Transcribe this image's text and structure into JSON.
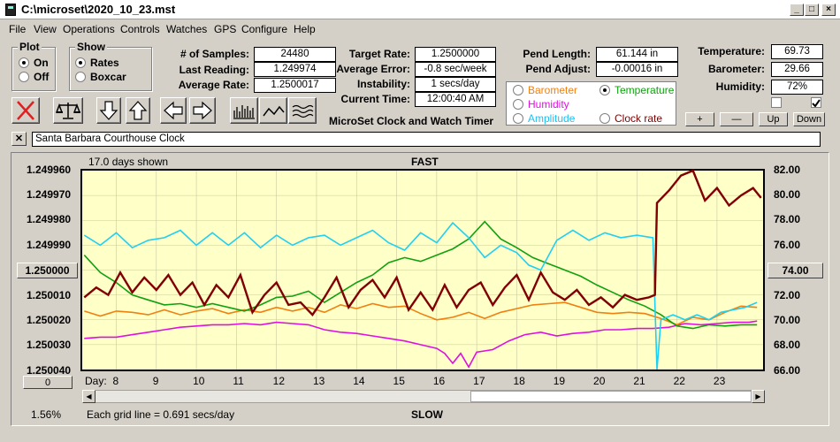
{
  "window": {
    "title": "C:\\microset\\2020_10_23.mst"
  },
  "menu": [
    "File",
    "View",
    "Operations",
    "Controls",
    "Watches",
    "GPS",
    "Configure",
    "Help"
  ],
  "plot_group": {
    "legend": "Plot",
    "on": "On",
    "off": "Off"
  },
  "show_group": {
    "legend": "Show",
    "rates": "Rates",
    "boxcar": "Boxcar"
  },
  "stats": {
    "samples_label": "# of Samples:",
    "samples": "24480",
    "last_label": "Last Reading:",
    "last": "1.249974",
    "avg_label": "Average Rate:",
    "avg": "1.2500017",
    "target_label": "Target Rate:",
    "target": "1.2500000",
    "avgerr_label": "Average Error:",
    "avgerr": "-0.8 sec/week",
    "instab_label": "Instability:",
    "instab": "1 secs/day",
    "curtime_label": "Current Time:",
    "curtime": "12:00:40 AM",
    "pendlen_label": "Pend Length:",
    "pendlen": "61.144 in",
    "pendadj_label": "Pend Adjust:",
    "pendadj": "-0.00016 in",
    "temp_label": "Temperature:",
    "temp": "69.73",
    "baro_label": "Barometer:",
    "baro": "29.66",
    "hum_label": "Humidity:",
    "hum": "72%"
  },
  "app_caption": "MicroSet Clock and Watch Timer",
  "sensor_select": {
    "barometer": "Barometer",
    "temperature": "Temperature",
    "humidity": "Humidity",
    "amplitude": "Amplitude",
    "clockrate": "Clock rate"
  },
  "colors": {
    "barometer": "#f08010",
    "temperature": "#10a010",
    "humidity": "#e010e0",
    "amplitude": "#20d0f0",
    "clockrate": "#800000"
  },
  "scale_buttons": {
    "plus": "+",
    "minus": "—",
    "up": "Up",
    "down": "Down"
  },
  "watch_name": "Santa Barbara Courthouse Clock",
  "close_label": "✕",
  "plot": {
    "days_shown": "17.0 days shown",
    "fast": "FAST",
    "slow": "SLOW",
    "day_label": "Day:",
    "left_ticks": [
      "1.249960",
      "1.249970",
      "1.249980",
      "1.249990",
      "1.250000",
      "1.250010",
      "1.250020",
      "1.250030",
      "1.250040"
    ],
    "right_ticks": [
      "82.00",
      "80.00",
      "78.00",
      "76.00",
      "74.00",
      "72.00",
      "70.00",
      "68.00",
      "66.00"
    ],
    "left_center_button": "1.250000",
    "right_center_button": "74.00",
    "zero_button": "0",
    "days": [
      "8",
      "9",
      "10",
      "11",
      "12",
      "13",
      "14",
      "15",
      "16",
      "17",
      "18",
      "19",
      "20",
      "21",
      "22",
      "23"
    ],
    "grid_note": "Each grid line = 0.691 secs/day",
    "percent": "1.56%"
  },
  "chart_data": {
    "type": "line",
    "x_unit": "day",
    "xlim": [
      7.15,
      24.15
    ],
    "left_axis": [
      1.24996,
      1.25004
    ],
    "right_axis": [
      66,
      82
    ],
    "series": [
      {
        "name": "Clock rate",
        "axis": "left",
        "x": [
          7.2,
          7.5,
          7.8,
          8.1,
          8.4,
          8.7,
          9.0,
          9.3,
          9.6,
          9.9,
          10.2,
          10.5,
          10.8,
          11.1,
          11.4,
          11.7,
          12.0,
          12.3,
          12.6,
          12.9,
          13.2,
          13.5,
          13.8,
          14.1,
          14.4,
          14.7,
          15.0,
          15.3,
          15.6,
          15.9,
          16.2,
          16.5,
          16.8,
          17.1,
          17.4,
          17.7,
          18.0,
          18.3,
          18.6,
          18.9,
          19.2,
          19.5,
          19.8,
          20.1,
          20.4,
          20.7,
          21.0,
          21.3,
          21.45,
          21.5,
          21.8,
          22.1,
          22.4,
          22.7,
          23.0,
          23.3,
          23.6,
          23.9,
          24.1
        ],
        "y": [
          1.250011,
          1.250007,
          1.25001,
          1.250001,
          1.250009,
          1.250003,
          1.250008,
          1.250002,
          1.25001,
          1.250005,
          1.250014,
          1.250006,
          1.250011,
          1.250002,
          1.250017,
          1.25001,
          1.250005,
          1.250014,
          1.250013,
          1.250018,
          1.250011,
          1.250003,
          1.250015,
          1.250008,
          1.250004,
          1.250011,
          1.250003,
          1.250016,
          1.250009,
          1.250016,
          1.250006,
          1.250015,
          1.250008,
          1.250005,
          1.250014,
          1.250007,
          1.250002,
          1.250012,
          1.250001,
          1.250009,
          1.250012,
          1.250008,
          1.250014,
          1.250011,
          1.250015,
          1.25001,
          1.250012,
          1.250011,
          1.25001,
          1.249973,
          1.249968,
          1.249962,
          1.24996,
          1.249972,
          1.249967,
          1.249974,
          1.24997,
          1.249967,
          1.249971
        ]
      },
      {
        "name": "Amplitude",
        "axis": "left",
        "x": [
          7.2,
          7.6,
          8.0,
          8.4,
          8.8,
          9.2,
          9.6,
          10.0,
          10.4,
          10.8,
          11.2,
          11.6,
          12.0,
          12.4,
          12.8,
          13.2,
          13.6,
          14.0,
          14.4,
          14.8,
          15.2,
          15.6,
          16.0,
          16.4,
          16.8,
          17.2,
          17.6,
          18.0,
          18.3,
          18.6,
          19.0,
          19.4,
          19.8,
          20.2,
          20.6,
          21.0,
          21.4,
          21.5,
          21.6,
          21.9,
          22.2,
          22.5,
          22.8,
          23.1,
          23.4,
          23.7,
          24.0
        ],
        "y": [
          1.249986,
          1.24999,
          1.249985,
          1.249991,
          1.249988,
          1.249987,
          1.249984,
          1.24999,
          1.249985,
          1.24999,
          1.249985,
          1.249991,
          1.249986,
          1.24999,
          1.249987,
          1.249986,
          1.24999,
          1.249987,
          1.249984,
          1.249989,
          1.249992,
          1.249985,
          1.249989,
          1.249981,
          1.249987,
          1.249995,
          1.24999,
          1.249993,
          1.249998,
          1.25,
          1.249988,
          1.249984,
          1.249988,
          1.249985,
          1.249987,
          1.249986,
          1.249987,
          1.25004,
          1.25002,
          1.250018,
          1.25002,
          1.250018,
          1.25002,
          1.250017,
          1.250016,
          1.250015,
          1.250013
        ]
      },
      {
        "name": "Temperature",
        "axis": "right",
        "x": [
          7.2,
          7.6,
          8.0,
          8.4,
          8.8,
          9.2,
          9.6,
          10.0,
          10.4,
          10.8,
          11.2,
          11.6,
          12.0,
          12.4,
          12.8,
          13.2,
          13.6,
          14.0,
          14.4,
          14.8,
          15.2,
          15.6,
          16.0,
          16.4,
          16.8,
          17.2,
          17.6,
          18.0,
          18.4,
          18.8,
          19.2,
          19.6,
          20.0,
          20.4,
          20.8,
          21.2,
          21.6,
          22.0,
          22.4,
          22.8,
          23.2,
          23.6,
          24.0
        ],
        "y": [
          75.2,
          73.8,
          73.0,
          72.0,
          71.6,
          71.2,
          71.3,
          71.0,
          71.3,
          71.0,
          70.7,
          71.2,
          71.8,
          71.9,
          72.3,
          71.4,
          72.2,
          73.0,
          73.6,
          74.6,
          75.0,
          74.7,
          75.2,
          75.7,
          76.5,
          77.9,
          76.5,
          75.8,
          75.0,
          74.5,
          74.0,
          73.5,
          72.8,
          72.2,
          71.6,
          71.1,
          70.4,
          69.5,
          69.3,
          69.6,
          69.5,
          69.6,
          69.6
        ]
      },
      {
        "name": "Barometer",
        "axis": "right",
        "x": [
          7.2,
          7.6,
          8.0,
          8.4,
          8.8,
          9.2,
          9.6,
          10.0,
          10.4,
          10.8,
          11.2,
          11.6,
          12.0,
          12.4,
          12.8,
          13.2,
          13.6,
          14.0,
          14.4,
          14.8,
          15.2,
          15.6,
          16.0,
          16.4,
          16.8,
          17.2,
          17.6,
          18.0,
          18.4,
          18.8,
          19.2,
          19.6,
          20.0,
          20.4,
          20.8,
          21.2,
          21.6,
          22.0,
          22.4,
          22.8,
          23.2,
          23.6,
          24.0
        ],
        "y": [
          70.7,
          70.3,
          70.7,
          70.6,
          70.4,
          70.8,
          70.4,
          70.7,
          70.9,
          70.5,
          70.8,
          70.6,
          71.0,
          70.7,
          71.0,
          70.6,
          71.2,
          70.9,
          71.3,
          71.0,
          71.1,
          70.5,
          70.0,
          70.2,
          70.6,
          70.1,
          70.6,
          70.9,
          71.2,
          71.3,
          71.4,
          71.0,
          70.6,
          70.5,
          70.6,
          70.5,
          70.1,
          69.6,
          70.2,
          70.0,
          70.6,
          71.1,
          71.0
        ]
      },
      {
        "name": "Humidity",
        "axis": "right",
        "x": [
          7.2,
          7.6,
          8.0,
          8.4,
          8.8,
          9.2,
          9.6,
          10.0,
          10.4,
          10.8,
          11.2,
          11.6,
          12.0,
          12.4,
          12.8,
          13.2,
          13.6,
          14.0,
          14.4,
          14.8,
          15.2,
          15.6,
          16.0,
          16.2,
          16.4,
          16.6,
          16.8,
          17.0,
          17.4,
          17.8,
          18.2,
          18.6,
          19.0,
          19.4,
          19.8,
          20.2,
          20.6,
          21.0,
          21.4,
          21.8,
          22.2,
          22.6,
          23.0,
          23.4,
          23.8,
          24.0
        ],
        "y": [
          68.5,
          68.6,
          68.6,
          68.8,
          69.0,
          69.2,
          69.4,
          69.5,
          69.6,
          69.6,
          69.7,
          69.6,
          69.8,
          69.7,
          69.6,
          69.2,
          69.0,
          68.9,
          68.7,
          68.5,
          68.3,
          68.0,
          67.7,
          67.3,
          66.5,
          67.3,
          66.2,
          67.4,
          67.6,
          68.3,
          68.8,
          69.0,
          68.7,
          68.9,
          69.0,
          69.2,
          69.2,
          69.3,
          69.3,
          69.4,
          69.7,
          69.6,
          69.7,
          69.8,
          69.8,
          69.9
        ]
      }
    ]
  }
}
